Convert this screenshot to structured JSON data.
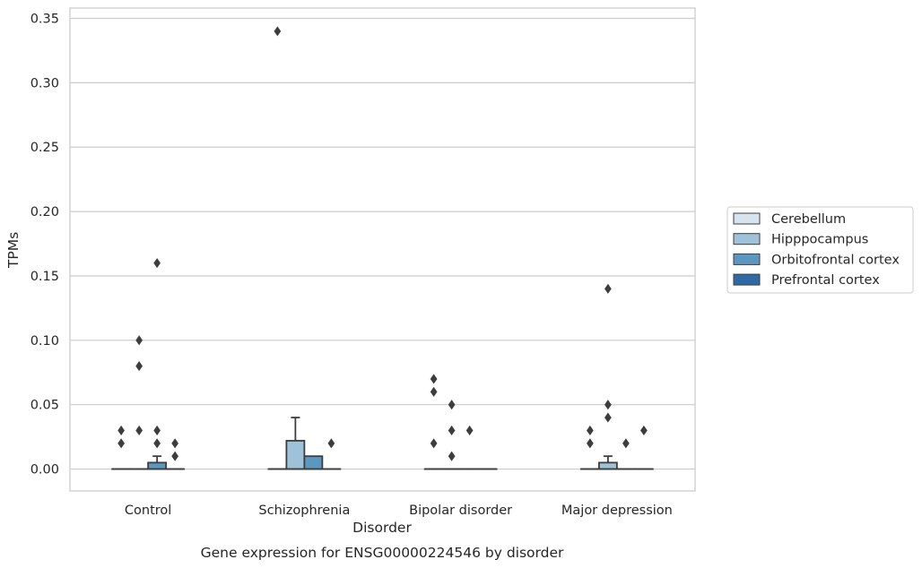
{
  "caption": "Gene expression for ENSG00000224546 by disorder",
  "colors": {
    "Cerebellum": "#d6e4f0",
    "Hipppocampus": "#9ec2d9",
    "Orbitofrontal cortex": "#5a97c1",
    "Prefrontal cortex": "#2e6aa3",
    "grid": "#cccccc",
    "line": "#3d3d3d"
  },
  "chart_data": {
    "type": "box",
    "xlabel": "Disorder",
    "ylabel": "TPMs",
    "ylim": [
      -0.017,
      0.358
    ],
    "yticks": [
      "0.00",
      "0.05",
      "0.10",
      "0.15",
      "0.20",
      "0.25",
      "0.30",
      "0.35"
    ],
    "categories": [
      "Control",
      "Schizophrenia",
      "Bipolar disorder",
      "Major depression"
    ],
    "grid": true,
    "legend_position": "right",
    "series": [
      {
        "name": "Cerebellum",
        "boxes": [
          {
            "q1": 0,
            "median": 0,
            "q3": 0,
            "whisker_low": 0,
            "whisker_high": 0,
            "outliers": [
              0.02,
              0.03
            ]
          },
          {
            "q1": 0,
            "median": 0,
            "q3": 0,
            "whisker_low": 0,
            "whisker_high": 0,
            "outliers": [
              0.34
            ]
          },
          {
            "q1": 0,
            "median": 0,
            "q3": 0,
            "whisker_low": 0,
            "whisker_high": 0,
            "outliers": [
              0.02,
              0.06,
              0.07
            ]
          },
          {
            "q1": 0,
            "median": 0,
            "q3": 0,
            "whisker_low": 0,
            "whisker_high": 0,
            "outliers": [
              0.02,
              0.03
            ]
          }
        ]
      },
      {
        "name": "Hipppocampus",
        "boxes": [
          {
            "q1": 0,
            "median": 0,
            "q3": 0,
            "whisker_low": 0,
            "whisker_high": 0,
            "outliers": [
              0.03,
              0.08,
              0.1
            ]
          },
          {
            "q1": 0,
            "median": 0,
            "q3": 0.022,
            "whisker_low": 0,
            "whisker_high": 0.04,
            "outliers": []
          },
          {
            "q1": 0,
            "median": 0,
            "q3": 0,
            "whisker_low": 0,
            "whisker_high": 0,
            "outliers": [
              0.01,
              0.03,
              0.05
            ]
          },
          {
            "q1": 0,
            "median": 0,
            "q3": 0.005,
            "whisker_low": 0,
            "whisker_high": 0.01,
            "outliers": [
              0.04,
              0.05,
              0.14
            ]
          }
        ]
      },
      {
        "name": "Orbitofrontal cortex",
        "boxes": [
          {
            "q1": 0,
            "median": 0,
            "q3": 0.005,
            "whisker_low": 0,
            "whisker_high": 0.01,
            "outliers": [
              0.02,
              0.03,
              0.16
            ]
          },
          {
            "q1": 0,
            "median": 0,
            "q3": 0.01,
            "whisker_low": 0,
            "whisker_high": 0.01,
            "outliers": []
          },
          {
            "q1": 0,
            "median": 0,
            "q3": 0,
            "whisker_low": 0,
            "whisker_high": 0,
            "outliers": [
              0.03
            ]
          },
          {
            "q1": 0,
            "median": 0,
            "q3": 0,
            "whisker_low": 0,
            "whisker_high": 0,
            "outliers": [
              0.02
            ]
          }
        ]
      },
      {
        "name": "Prefrontal cortex",
        "boxes": [
          {
            "q1": 0,
            "median": 0,
            "q3": 0,
            "whisker_low": 0,
            "whisker_high": 0,
            "outliers": [
              0.01,
              0.02
            ]
          },
          {
            "q1": 0,
            "median": 0,
            "q3": 0,
            "whisker_low": 0,
            "whisker_high": 0,
            "outliers": [
              0.02
            ]
          },
          {
            "q1": 0,
            "median": 0,
            "q3": 0,
            "whisker_low": 0,
            "whisker_high": 0,
            "outliers": []
          },
          {
            "q1": 0,
            "median": 0,
            "q3": 0,
            "whisker_low": 0,
            "whisker_high": 0,
            "outliers": [
              0.03
            ]
          }
        ]
      }
    ]
  }
}
